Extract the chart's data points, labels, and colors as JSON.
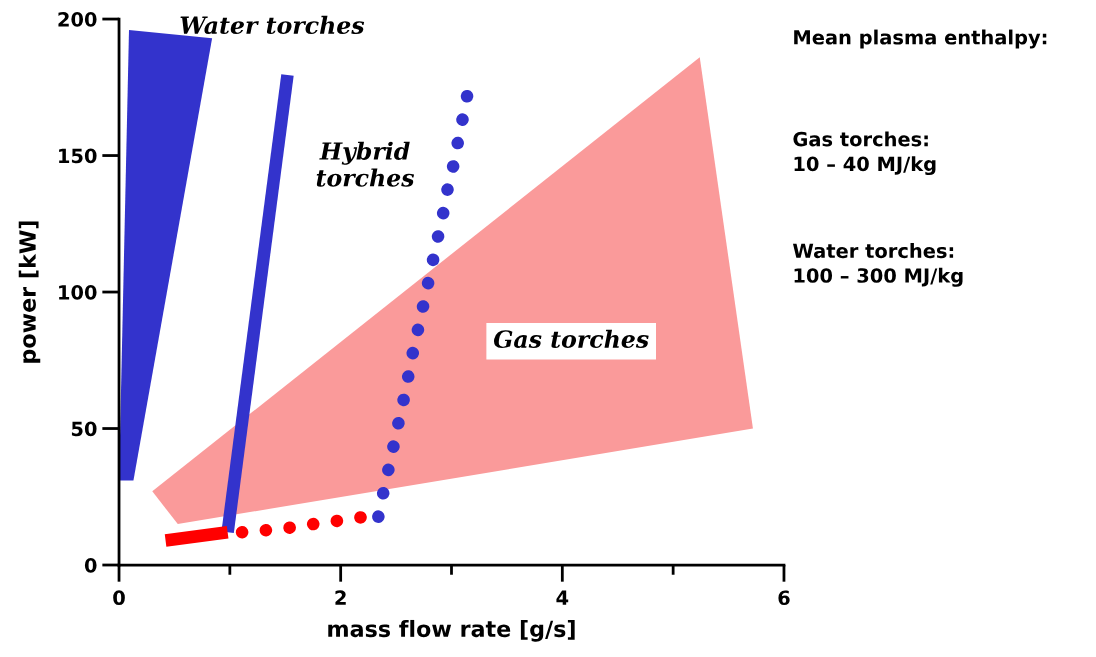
{
  "chart_data": {
    "type": "line",
    "xlabel": "mass flow rate [g/s]",
    "ylabel": "power [kW]",
    "xlim": [
      0,
      6
    ],
    "ylim": [
      0,
      200
    ],
    "xticks": [
      0,
      {
        "value": 1,
        "label": null
      },
      2,
      {
        "value": 3,
        "label": null
      },
      4,
      {
        "value": 5,
        "label": null
      },
      6
    ],
    "yticks": [
      0,
      50,
      100,
      150,
      200
    ],
    "grid": false,
    "legend": false,
    "series": [
      {
        "type": "area",
        "color": "#fa9a9a",
        "x": [
          0.3,
          5.24,
          5.72,
          0.53
        ],
        "values": [
          27,
          186,
          50,
          15
        ]
      },
      {
        "type": "area",
        "color": "#3333cc",
        "x": [
          0.09,
          0.84,
          0.13,
          0.0
        ],
        "values": [
          196,
          193,
          31,
          31
        ]
      },
      {
        "line_style": "solid",
        "color": "#3333cc",
        "x": [
          0.98,
          1.52
        ],
        "values": [
          12,
          179.5
        ]
      },
      {
        "line_style": "solid",
        "color": "#ff0000",
        "x": [
          0.42,
          0.98
        ],
        "values": [
          9,
          12
        ]
      },
      {
        "line_style": "dotted",
        "color": "#ff0000",
        "x": [
          1.11,
          1.35,
          1.59,
          1.81,
          2.04,
          2.26
        ],
        "values": [
          12,
          12.8,
          13.9,
          15.4,
          16.5,
          18
        ]
      },
      {
        "line_style": "dotted",
        "color": "#3333cc",
        "x": [
          2.34,
          2.39,
          2.44,
          2.49,
          2.54,
          2.59,
          2.63,
          2.68,
          2.73,
          2.78,
          2.83,
          2.88,
          2.93,
          2.97,
          3.03,
          3.07,
          3.12,
          3.16
        ],
        "values": [
          17.7,
          27.5,
          36.6,
          46.0,
          55.6,
          64.4,
          73.9,
          83.0,
          92.2,
          101.6,
          111.1,
          120.6,
          129.8,
          138.9,
          148.4,
          157.9,
          166.9,
          176.4
        ]
      }
    ],
    "annotations": [
      "Water torches",
      "Hybrid\ntorches",
      "Gas torches",
      "Mean plasma enthalpy:",
      "Gas torches:\n10 – 40 MJ/kg",
      "Water torches:\n100 – 300 MJ/kg"
    ]
  }
}
